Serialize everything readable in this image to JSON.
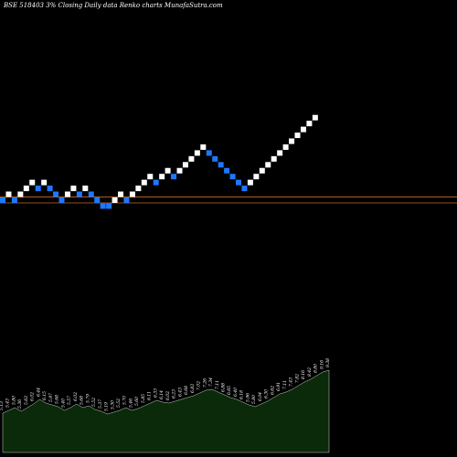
{
  "header": {
    "title": "BSE 518403 3% Closing Daily data Renko charts MunafaSutra.com"
  },
  "colors": {
    "background": "#000000",
    "up_brick": "#ffffff",
    "down_brick": "#1e78ff",
    "reference_line": "#c8642a",
    "volume_fill": "#0a2a0a",
    "volume_stroke": "#ffffff"
  },
  "chart_data": [
    {
      "type": "renko",
      "title": "BSE 518403 3% Closing Daily data Renko charts MunafaSutra.com",
      "reference_levels": [
        1.0,
        0.0
      ],
      "bricks": [
        {
          "level": 0,
          "dir": "down"
        },
        {
          "level": 1,
          "dir": "up"
        },
        {
          "level": 0,
          "dir": "down"
        },
        {
          "level": 1,
          "dir": "up"
        },
        {
          "level": 2,
          "dir": "up"
        },
        {
          "level": 3,
          "dir": "up"
        },
        {
          "level": 2,
          "dir": "down"
        },
        {
          "level": 3,
          "dir": "up"
        },
        {
          "level": 2,
          "dir": "down"
        },
        {
          "level": 1,
          "dir": "down"
        },
        {
          "level": 0,
          "dir": "down"
        },
        {
          "level": 1,
          "dir": "up"
        },
        {
          "level": 2,
          "dir": "up"
        },
        {
          "level": 1,
          "dir": "down"
        },
        {
          "level": 2,
          "dir": "up"
        },
        {
          "level": 1,
          "dir": "down"
        },
        {
          "level": 0,
          "dir": "down"
        },
        {
          "level": -1,
          "dir": "down"
        },
        {
          "level": -1,
          "dir": "down"
        },
        {
          "level": 0,
          "dir": "up"
        },
        {
          "level": 1,
          "dir": "up"
        },
        {
          "level": 0,
          "dir": "down"
        },
        {
          "level": 1,
          "dir": "up"
        },
        {
          "level": 2,
          "dir": "up"
        },
        {
          "level": 3,
          "dir": "up"
        },
        {
          "level": 4,
          "dir": "up"
        },
        {
          "level": 3,
          "dir": "down"
        },
        {
          "level": 4,
          "dir": "up"
        },
        {
          "level": 5,
          "dir": "up"
        },
        {
          "level": 4,
          "dir": "down"
        },
        {
          "level": 5,
          "dir": "up"
        },
        {
          "level": 6,
          "dir": "up"
        },
        {
          "level": 7,
          "dir": "up"
        },
        {
          "level": 8,
          "dir": "up"
        },
        {
          "level": 9,
          "dir": "up"
        },
        {
          "level": 8,
          "dir": "down"
        },
        {
          "level": 7,
          "dir": "down"
        },
        {
          "level": 6,
          "dir": "down"
        },
        {
          "level": 5,
          "dir": "down"
        },
        {
          "level": 4,
          "dir": "down"
        },
        {
          "level": 3,
          "dir": "down"
        },
        {
          "level": 2,
          "dir": "down"
        },
        {
          "level": 3,
          "dir": "up"
        },
        {
          "level": 4,
          "dir": "up"
        },
        {
          "level": 5,
          "dir": "up"
        },
        {
          "level": 6,
          "dir": "up"
        },
        {
          "level": 7,
          "dir": "up"
        },
        {
          "level": 8,
          "dir": "up"
        },
        {
          "level": 9,
          "dir": "up"
        },
        {
          "level": 10,
          "dir": "up"
        },
        {
          "level": 11,
          "dir": "up"
        },
        {
          "level": 12,
          "dir": "up"
        },
        {
          "level": 13,
          "dir": "up"
        },
        {
          "level": 14,
          "dir": "up"
        }
      ]
    },
    {
      "type": "area",
      "values": [
        4.3,
        4.6,
        4.9,
        4.5,
        4.9,
        5.3,
        5.8,
        5.4,
        5.2,
        5.0,
        4.6,
        4.9,
        5.3,
        4.9,
        5.1,
        4.7,
        4.5,
        4.2,
        4.4,
        4.6,
        4.9,
        4.6,
        4.8,
        5.1,
        5.4,
        5.7,
        5.5,
        5.4,
        5.6,
        5.8,
        6.0,
        6.2,
        6.5,
        6.8,
        6.9,
        6.6,
        6.3,
        6.0,
        5.8,
        5.5,
        5.2,
        5.0,
        5.3,
        5.6,
        6.0,
        6.4,
        6.6,
        6.9,
        7.3,
        7.7,
        8.0,
        8.4,
        8.8,
        9.0
      ],
      "labels": [
        "5.13",
        "5.43",
        "5.80",
        "5.36",
        "5.63",
        "6.02",
        "6.44",
        "6.15",
        "5.97",
        "5.68",
        "5.40",
        "5.57",
        "6.02",
        "5.68",
        "5.79",
        "5.52",
        "5.37",
        "5.19",
        "5.30",
        "5.52",
        "5.70",
        "5.46",
        "5.60",
        "5.85",
        "6.11",
        "6.33",
        "6.14",
        "6.02",
        "6.23",
        "6.43",
        "6.68",
        "6.83",
        "7.02",
        "7.26",
        "7.34",
        "7.11",
        "6.88",
        "6.65",
        "6.40",
        "6.18",
        "5.96",
        "5.80",
        "6.04",
        "6.30",
        "6.62",
        "6.91",
        "7.11",
        "7.43",
        "7.82",
        "8.16",
        "8.42",
        "8.80",
        "9.16",
        "9.38"
      ]
    }
  ]
}
